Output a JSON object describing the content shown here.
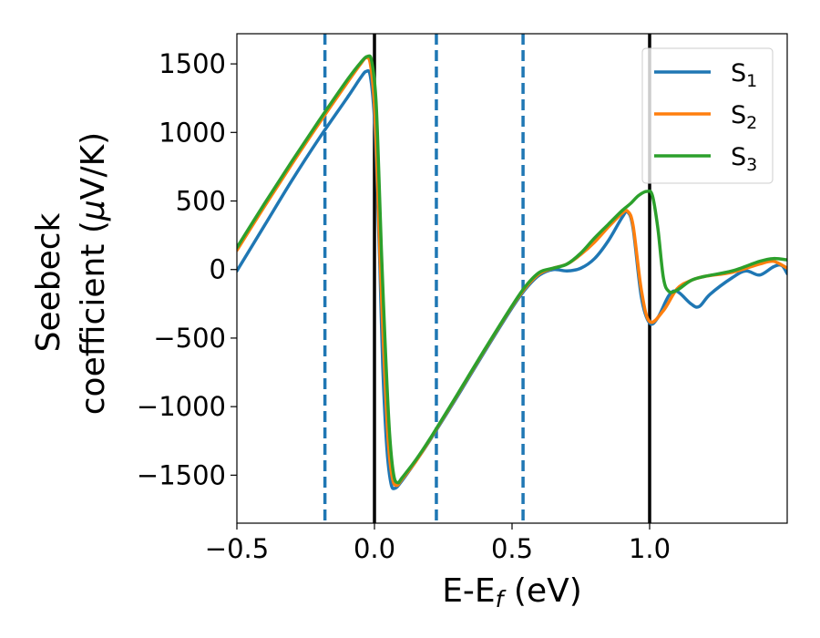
{
  "chart_data": {
    "type": "line",
    "title": "",
    "xlabel": {
      "main": "E-E",
      "sub": "f",
      "unit": " (eV)"
    },
    "ylabel": {
      "line1": "Seebeck",
      "line2_pre": "coefficient  (",
      "mu": "μ",
      "line2_post": "V/K)"
    },
    "xlim": [
      -0.5,
      1.5
    ],
    "ylim": [
      -1850,
      1720
    ],
    "xticks": [
      -0.5,
      0.0,
      0.5,
      1.0
    ],
    "xtick_labels": [
      "−0.5",
      "0.0",
      "0.5",
      "1.0"
    ],
    "yticks": [
      1500,
      1000,
      500,
      0,
      -500,
      -1000,
      -1500
    ],
    "ytick_labels": [
      "1500",
      "1000",
      "500",
      "0",
      "−500",
      "−1000",
      "−1500"
    ],
    "grid": false,
    "legend_position": "top-right",
    "vlines_solid": [
      0.0,
      1.0
    ],
    "vlines_dashed": [
      -0.18,
      0.225,
      0.54
    ],
    "vline_solid_color": "#000000",
    "vline_dashed_color": "#1f77b4",
    "series": [
      {
        "name": "S",
        "sub": "1",
        "color": "#1f77b4",
        "points": [
          [
            -0.5,
            -10
          ],
          [
            -0.4,
            320
          ],
          [
            -0.3,
            650
          ],
          [
            -0.2,
            960
          ],
          [
            -0.1,
            1250
          ],
          [
            -0.05,
            1400
          ],
          [
            -0.03,
            1445
          ],
          [
            -0.015,
            1410
          ],
          [
            0.0,
            1100
          ],
          [
            0.01,
            600
          ],
          [
            0.02,
            0
          ],
          [
            0.03,
            -700
          ],
          [
            0.045,
            -1300
          ],
          [
            0.06,
            -1560
          ],
          [
            0.075,
            -1595
          ],
          [
            0.1,
            -1540
          ],
          [
            0.15,
            -1400
          ],
          [
            0.2,
            -1250
          ],
          [
            0.3,
            -930
          ],
          [
            0.4,
            -600
          ],
          [
            0.5,
            -280
          ],
          [
            0.55,
            -140
          ],
          [
            0.6,
            -40
          ],
          [
            0.65,
            0
          ],
          [
            0.7,
            -10
          ],
          [
            0.75,
            10
          ],
          [
            0.8,
            80
          ],
          [
            0.85,
            210
          ],
          [
            0.9,
            380
          ],
          [
            0.92,
            420
          ],
          [
            0.94,
            300
          ],
          [
            0.97,
            -200
          ],
          [
            1.0,
            -390
          ],
          [
            1.03,
            -350
          ],
          [
            1.07,
            -190
          ],
          [
            1.1,
            -160
          ],
          [
            1.15,
            -250
          ],
          [
            1.18,
            -270
          ],
          [
            1.22,
            -180
          ],
          [
            1.3,
            -60
          ],
          [
            1.35,
            -10
          ],
          [
            1.4,
            -40
          ],
          [
            1.45,
            20
          ],
          [
            1.48,
            30
          ],
          [
            1.5,
            -30
          ]
        ]
      },
      {
        "name": "S",
        "sub": "2",
        "color": "#ff7f0e",
        "points": [
          [
            -0.5,
            140
          ],
          [
            -0.4,
            460
          ],
          [
            -0.3,
            770
          ],
          [
            -0.2,
            1070
          ],
          [
            -0.1,
            1360
          ],
          [
            -0.05,
            1500
          ],
          [
            -0.03,
            1545
          ],
          [
            -0.015,
            1500
          ],
          [
            0.0,
            1200
          ],
          [
            0.01,
            700
          ],
          [
            0.02,
            100
          ],
          [
            0.035,
            -650
          ],
          [
            0.05,
            -1250
          ],
          [
            0.065,
            -1520
          ],
          [
            0.08,
            -1575
          ],
          [
            0.1,
            -1530
          ],
          [
            0.15,
            -1400
          ],
          [
            0.2,
            -1245
          ],
          [
            0.3,
            -920
          ],
          [
            0.4,
            -590
          ],
          [
            0.5,
            -270
          ],
          [
            0.55,
            -130
          ],
          [
            0.6,
            -30
          ],
          [
            0.65,
            10
          ],
          [
            0.7,
            40
          ],
          [
            0.75,
            110
          ],
          [
            0.8,
            200
          ],
          [
            0.85,
            310
          ],
          [
            0.9,
            410
          ],
          [
            0.92,
            425
          ],
          [
            0.94,
            320
          ],
          [
            0.97,
            -150
          ],
          [
            1.0,
            -380
          ],
          [
            1.05,
            -300
          ],
          [
            1.1,
            -140
          ],
          [
            1.15,
            -80
          ],
          [
            1.2,
            -50
          ],
          [
            1.3,
            -20
          ],
          [
            1.4,
            40
          ],
          [
            1.45,
            60
          ],
          [
            1.5,
            10
          ]
        ]
      },
      {
        "name": "S",
        "sub": "3",
        "color": "#2ca02c",
        "points": [
          [
            -0.5,
            160
          ],
          [
            -0.4,
            480
          ],
          [
            -0.3,
            790
          ],
          [
            -0.2,
            1090
          ],
          [
            -0.1,
            1380
          ],
          [
            -0.05,
            1510
          ],
          [
            -0.025,
            1555
          ],
          [
            -0.01,
            1520
          ],
          [
            0.005,
            1250
          ],
          [
            0.015,
            750
          ],
          [
            0.025,
            150
          ],
          [
            0.04,
            -600
          ],
          [
            0.055,
            -1200
          ],
          [
            0.07,
            -1500
          ],
          [
            0.085,
            -1555
          ],
          [
            0.1,
            -1520
          ],
          [
            0.15,
            -1390
          ],
          [
            0.2,
            -1240
          ],
          [
            0.3,
            -915
          ],
          [
            0.4,
            -585
          ],
          [
            0.5,
            -265
          ],
          [
            0.55,
            -120
          ],
          [
            0.6,
            -20
          ],
          [
            0.65,
            10
          ],
          [
            0.7,
            40
          ],
          [
            0.75,
            120
          ],
          [
            0.8,
            230
          ],
          [
            0.85,
            330
          ],
          [
            0.9,
            430
          ],
          [
            0.93,
            480
          ],
          [
            0.96,
            540
          ],
          [
            0.99,
            570
          ],
          [
            1.01,
            540
          ],
          [
            1.03,
            300
          ],
          [
            1.05,
            -60
          ],
          [
            1.07,
            -160
          ],
          [
            1.1,
            -150
          ],
          [
            1.15,
            -80
          ],
          [
            1.2,
            -50
          ],
          [
            1.3,
            -10
          ],
          [
            1.4,
            60
          ],
          [
            1.45,
            80
          ],
          [
            1.5,
            70
          ]
        ]
      }
    ]
  }
}
